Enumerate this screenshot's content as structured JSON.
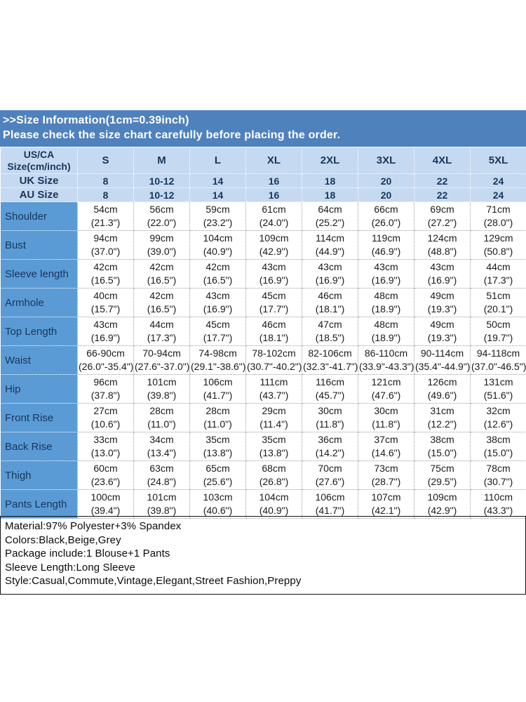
{
  "header": {
    "title": ">>Size Information(1cm=0.39inch)",
    "subtitle": "Please check the size chart carefully before placing the order."
  },
  "table": {
    "corner_lines": [
      "US/CA",
      "Size(cm/inch)"
    ],
    "size_columns": [
      "S",
      "M",
      "L",
      "XL",
      "2XL",
      "3XL",
      "4XL",
      "5XL"
    ],
    "size_rows": [
      {
        "label": "UK Size",
        "values": [
          "8",
          "10-12",
          "14",
          "16",
          "18",
          "20",
          "22",
          "24"
        ]
      },
      {
        "label": "AU Size",
        "values": [
          "8",
          "10-12",
          "14",
          "16",
          "18",
          "20",
          "22",
          "24"
        ]
      }
    ],
    "measurement_rows": [
      {
        "label": "Shoulder",
        "cm": [
          "54cm",
          "56cm",
          "59cm",
          "61cm",
          "64cm",
          "66cm",
          "69cm",
          "71cm"
        ],
        "inch": [
          "(21.3\")",
          "(22.0\")",
          "(23.2\")",
          "(24.0\")",
          "(25.2\")",
          "(26.0\")",
          "(27.2\")",
          "(28.0\")"
        ]
      },
      {
        "label": "Bust",
        "cm": [
          "94cm",
          "99cm",
          "104cm",
          "109cm",
          "114cm",
          "119cm",
          "124cm",
          "129cm"
        ],
        "inch": [
          "(37.0\")",
          "(39.0\")",
          "(40.9\")",
          "(42.9\")",
          "(44.9\")",
          "(46.9\")",
          "(48.8\")",
          "(50.8\")"
        ]
      },
      {
        "label": "Sleeve length",
        "cm": [
          "42cm",
          "42cm",
          "42cm",
          "43cm",
          "43cm",
          "43cm",
          "43cm",
          "44cm"
        ],
        "inch": [
          "(16.5\")",
          "(16.5\")",
          "(16.5\")",
          "(16.9\")",
          "(16.9\")",
          "(16.9\")",
          "(16.9\")",
          "(17.3\")"
        ]
      },
      {
        "label": "Armhole",
        "cm": [
          "40cm",
          "42cm",
          "43cm",
          "45cm",
          "46cm",
          "48cm",
          "49cm",
          "51cm"
        ],
        "inch": [
          "(15.7\")",
          "(16.5\")",
          "(16.9\")",
          "(17.7\")",
          "(18.1\")",
          "(18.9\")",
          "(19.3\")",
          "(20.1\")"
        ]
      },
      {
        "label": "Top Length",
        "cm": [
          "43cm",
          "44cm",
          "45cm",
          "46cm",
          "47cm",
          "48cm",
          "49cm",
          "50cm"
        ],
        "inch": [
          "(16.9\")",
          "(17.3\")",
          "(17.7\")",
          "(18.1\")",
          "(18.5\")",
          "(18.9\")",
          "(19.3\")",
          "(19.7\")"
        ]
      },
      {
        "label": "Waist",
        "cm": [
          "66-90cm",
          "70-94cm",
          "74-98cm",
          "78-102cm",
          "82-106cm",
          "86-110cm",
          "90-114cm",
          "94-118cm"
        ],
        "inch": [
          "(26.0\"-35.4\")",
          "(27.6\"-37.0\")",
          "(29.1\"-38.6\")",
          "(30.7\"-40.2\")",
          "(32.3\"-41.7\")",
          "(33.9\"-43.3\")",
          "(35.4\"-44.9\")",
          "(37.0\"-46.5\")"
        ]
      },
      {
        "label": "Hip",
        "cm": [
          "96cm",
          "101cm",
          "106cm",
          "111cm",
          "116cm",
          "121cm",
          "126cm",
          "131cm"
        ],
        "inch": [
          "(37.8\")",
          "(39.8\")",
          "(41.7\")",
          "(43.7\")",
          "(45.7\")",
          "(47.6\")",
          "(49.6\")",
          "(51.6\")"
        ]
      },
      {
        "label": "Front Rise",
        "cm": [
          "27cm",
          "28cm",
          "28cm",
          "29cm",
          "30cm",
          "30cm",
          "31cm",
          "32cm"
        ],
        "inch": [
          "(10.6\")",
          "(11.0\")",
          "(11.0\")",
          "(11.4\")",
          "(11.8\")",
          "(11.8\")",
          "(12.2\")",
          "(12.6\")"
        ]
      },
      {
        "label": "Back Rise",
        "cm": [
          "33cm",
          "34cm",
          "35cm",
          "35cm",
          "36cm",
          "37cm",
          "38cm",
          "38cm"
        ],
        "inch": [
          "(13.0\")",
          "(13.4\")",
          "(13.8\")",
          "(13.8\")",
          "(14.2\")",
          "(14.6\")",
          "(15.0\")",
          "(15.0\")"
        ]
      },
      {
        "label": "Thigh",
        "cm": [
          "60cm",
          "63cm",
          "65cm",
          "68cm",
          "70cm",
          "73cm",
          "75cm",
          "78cm"
        ],
        "inch": [
          "(23.6\")",
          "(24.8\")",
          "(25.6\")",
          "(26.8\")",
          "(27.6\")",
          "(28.7\")",
          "(29.5\")",
          "(30.7\")"
        ]
      },
      {
        "label": "Pants Length",
        "cm": [
          "100cm",
          "101cm",
          "103cm",
          "104cm",
          "106cm",
          "107cm",
          "109cm",
          "110cm"
        ],
        "inch": [
          "(39.4\")",
          "(39.8\")",
          "(40.6\")",
          "(40.9\")",
          "(41.7\")",
          "(42.1\")",
          "(42.9\")",
          "(43.3\")"
        ]
      }
    ]
  },
  "footer": {
    "lines": [
      "Material:97% Polyester+3% Spandex",
      "Colors:Black,Beige,Grey",
      "Package include:1 Blouse+1 Pants",
      "Sleeve Length:Long Sleeve",
      "Style:Casual,Commute,Vintage,Elegant,Street Fashion,Preppy"
    ]
  },
  "colors": {
    "band_bg": "#4f81bd",
    "header_cell_bg": "#c5d9f1",
    "row_label_bg": "#5b9bd5",
    "navy_text": "#17375d",
    "data_text": "#1a1a1a"
  }
}
